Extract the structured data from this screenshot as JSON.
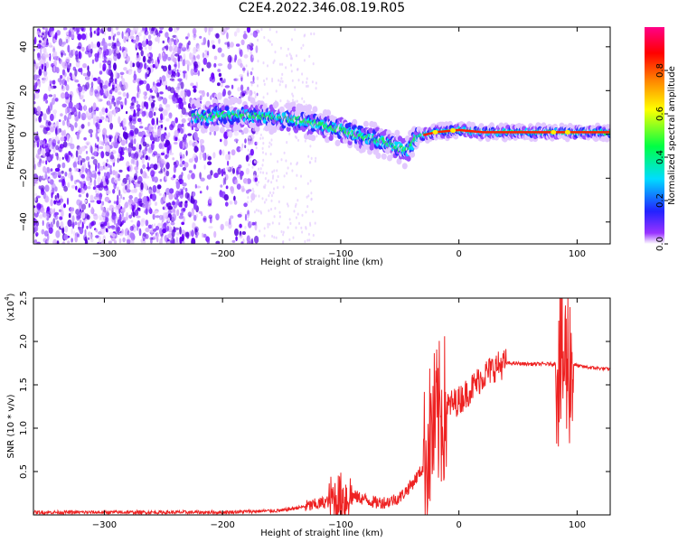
{
  "title": "C2E4.2022.346.08.19.R05",
  "chart_data": [
    {
      "type": "heatmap",
      "title": "C2E4.2022.346.08.19.R05",
      "xlabel": "Height of straight line (km)",
      "ylabel": "Frequency (Hz)",
      "xlim": [
        -360,
        128
      ],
      "ylim": [
        -50,
        49
      ],
      "x_ticks": [
        -300,
        -200,
        -100,
        0,
        100
      ],
      "y_ticks": [
        -40,
        -20,
        0,
        20,
        40
      ],
      "colorbar": {
        "label": "Normalized spectral amplitude",
        "range": [
          0,
          1
        ],
        "ticks": [
          "0.0",
          "0.2",
          "0.4",
          "0.6",
          "0.8"
        ],
        "tick_values": [
          0.0,
          0.2,
          0.4,
          0.6,
          0.8
        ],
        "colors": [
          "#ffffff",
          "#9933ff",
          "#2222ff",
          "#00ddff",
          "#00ff44",
          "#ffff00",
          "#ff8800",
          "#ff0000",
          "#ff0088"
        ]
      },
      "ridge_frequency": {
        "x": [
          -220,
          -190,
          -160,
          -130,
          -100,
          -80,
          -60,
          -45,
          -35,
          -20,
          0,
          20,
          50,
          80,
          100,
          128
        ],
        "y": [
          8,
          9,
          8,
          6,
          2,
          -1,
          -4,
          -8,
          -1,
          1,
          2,
          1,
          1,
          1,
          1,
          1
        ]
      }
    },
    {
      "type": "line",
      "xlabel": "Height of straight line (km)",
      "ylabel": "SNR (10 * v/v)",
      "y_scale_note": "(x10",
      "y_scale_exp": "4",
      "y_scale_close": ")",
      "xlim": [
        -360,
        128
      ],
      "ylim": [
        0,
        2.5
      ],
      "x_ticks": [
        -300,
        -200,
        -100,
        0,
        100
      ],
      "y_ticks": [
        "0.5",
        "1.0",
        "1.5",
        "2.0",
        "2.5"
      ],
      "y_tick_values": [
        0.5,
        1.0,
        1.5,
        2.0,
        2.5
      ],
      "series": [
        {
          "color": "#ee2222",
          "x": [
            -360,
            -300,
            -200,
            -150,
            -120,
            -100,
            -90,
            -80,
            -70,
            -60,
            -50,
            -40,
            -30,
            -25,
            -20,
            -15,
            -10,
            0,
            10,
            20,
            30,
            40,
            60,
            80,
            90,
            95,
            100,
            110,
            128
          ],
          "y": [
            0.03,
            0.03,
            0.03,
            0.05,
            0.12,
            0.2,
            0.22,
            0.18,
            0.14,
            0.15,
            0.2,
            0.35,
            0.55,
            0.85,
            1.05,
            1.15,
            1.25,
            1.32,
            1.45,
            1.6,
            1.7,
            1.75,
            1.74,
            1.74,
            1.76,
            1.75,
            1.72,
            1.7,
            1.68
          ]
        }
      ],
      "noise_bursts": [
        {
          "x": [
            -30,
            -10
          ],
          "amplitude": 0.9
        },
        {
          "x": [
            82,
            97
          ],
          "amplitude": 1.0
        },
        {
          "x": [
            -110,
            -90
          ],
          "amplitude": 0.3
        }
      ]
    }
  ]
}
